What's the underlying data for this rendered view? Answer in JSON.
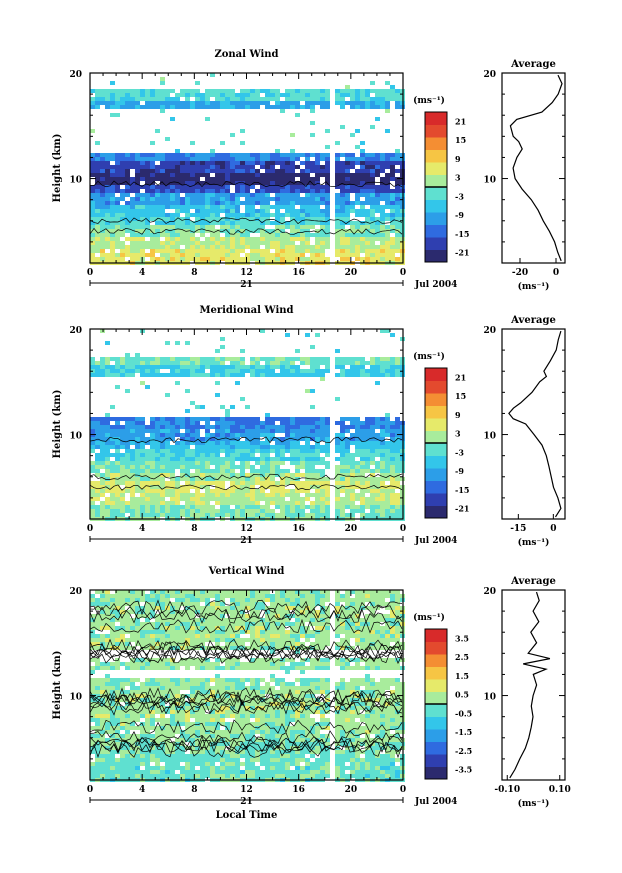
{
  "chart_data": [
    {
      "type": "heatmap",
      "title": "Zonal Wind",
      "xlabel": "",
      "ylabel": "Height (km)",
      "xlim": [
        0,
        24
      ],
      "ylim": [
        2,
        20
      ],
      "x_ticks": [
        "0",
        "4",
        "8",
        "12",
        "16",
        "20",
        "0"
      ],
      "y_ticks": [
        "10",
        "20"
      ],
      "date_labels": [
        "21",
        "Jul 2004"
      ],
      "colorbar": {
        "unit": "(ms⁻¹)",
        "ticks": [
          "21",
          "15",
          "9",
          "3",
          "-3",
          "-9",
          "-15",
          "-21"
        ],
        "range": [
          -24,
          24
        ]
      },
      "field": [
        {
          "z": 2.5,
          "v": 6
        },
        {
          "z": 4,
          "v": 3
        },
        {
          "z": 5,
          "v": 0
        },
        {
          "z": 6,
          "v": -3
        },
        {
          "z": 7,
          "v": -6
        },
        {
          "z": 8,
          "v": -10
        },
        {
          "z": 9,
          "v": -17
        },
        {
          "z": 10,
          "v": -22
        },
        {
          "z": 11,
          "v": -18
        },
        {
          "z": 12,
          "v": -12
        },
        {
          "z": 13,
          "v": null
        },
        {
          "z": 14,
          "v": null
        },
        {
          "z": 15,
          "v": null
        },
        {
          "z": 16,
          "v": null
        },
        {
          "z": 17,
          "v": -9
        },
        {
          "z": 18,
          "v": -3
        },
        {
          "z": 19,
          "v": null
        }
      ],
      "average": {
        "title": "Average",
        "xlabel": "(ms⁻¹)",
        "x_ticks": [
          "-20",
          "0"
        ],
        "xlim": [
          -30,
          5
        ],
        "ylim": [
          2,
          20
        ],
        "y_ticks": [
          "10",
          "20"
        ],
        "profile": [
          {
            "z": 2.2,
            "v": 3
          },
          {
            "z": 3,
            "v": 1
          },
          {
            "z": 4,
            "v": -1
          },
          {
            "z": 5,
            "v": -4
          },
          {
            "z": 6,
            "v": -7
          },
          {
            "z": 7,
            "v": -10
          },
          {
            "z": 8,
            "v": -14
          },
          {
            "z": 9,
            "v": -19
          },
          {
            "z": 10,
            "v": -23
          },
          {
            "z": 11,
            "v": -24
          },
          {
            "z": 12,
            "v": -22
          },
          {
            "z": 12.8,
            "v": -19
          },
          {
            "z": 13.5,
            "v": -21
          },
          {
            "z": 14,
            "v": -24
          },
          {
            "z": 15,
            "v": -25
          },
          {
            "z": 15.6,
            "v": -22
          },
          {
            "z": 16.3,
            "v": -8
          },
          {
            "z": 17.2,
            "v": -2
          },
          {
            "z": 18,
            "v": 1
          },
          {
            "z": 19,
            "v": 3
          },
          {
            "z": 19.8,
            "v": 1
          }
        ]
      }
    },
    {
      "type": "heatmap",
      "title": "Meridional Wind",
      "xlabel": "",
      "ylabel": "Height (km)",
      "xlim": [
        0,
        24
      ],
      "ylim": [
        2,
        20
      ],
      "x_ticks": [
        "0",
        "4",
        "8",
        "12",
        "16",
        "20",
        "0"
      ],
      "y_ticks": [
        "10",
        "20"
      ],
      "date_labels": [
        "21",
        "Jul 2004"
      ],
      "colorbar": {
        "unit": "(ms⁻¹)",
        "ticks": [
          "21",
          "15",
          "9",
          "3",
          "-3",
          "-9",
          "-15",
          "-21"
        ],
        "range": [
          -24,
          24
        ]
      },
      "field": [
        {
          "z": 2.5,
          "v": 0
        },
        {
          "z": 4,
          "v": 3
        },
        {
          "z": 5,
          "v": 5
        },
        {
          "z": 6,
          "v": 2
        },
        {
          "z": 7,
          "v": -1
        },
        {
          "z": 8,
          "v": -4
        },
        {
          "z": 9,
          "v": -7
        },
        {
          "z": 10,
          "v": -10
        },
        {
          "z": 11,
          "v": -12
        },
        {
          "z": 12,
          "v": null
        },
        {
          "z": 13,
          "v": null
        },
        {
          "z": 14,
          "v": null
        },
        {
          "z": 15,
          "v": null
        },
        {
          "z": 16,
          "v": -5
        },
        {
          "z": 17,
          "v": -1
        },
        {
          "z": 18,
          "v": null
        },
        {
          "z": 19,
          "v": null
        }
      ],
      "average": {
        "title": "Average",
        "xlabel": "(ms⁻¹)",
        "x_ticks": [
          "-15",
          "0"
        ],
        "xlim": [
          -22,
          5
        ],
        "ylim": [
          2,
          20
        ],
        "y_ticks": [
          "10",
          "20"
        ],
        "profile": [
          {
            "z": 2.2,
            "v": 1
          },
          {
            "z": 3,
            "v": 3
          },
          {
            "z": 4,
            "v": 2
          },
          {
            "z": 5,
            "v": 0
          },
          {
            "z": 6,
            "v": -1
          },
          {
            "z": 7,
            "v": -2
          },
          {
            "z": 8,
            "v": -3
          },
          {
            "z": 9,
            "v": -5
          },
          {
            "z": 10,
            "v": -8
          },
          {
            "z": 11,
            "v": -12
          },
          {
            "z": 11.5,
            "v": -17
          },
          {
            "z": 12,
            "v": -19
          },
          {
            "z": 12.5,
            "v": -17
          },
          {
            "z": 13,
            "v": -14
          },
          {
            "z": 14,
            "v": -9
          },
          {
            "z": 15,
            "v": -6
          },
          {
            "z": 15.5,
            "v": -3
          },
          {
            "z": 16,
            "v": -4
          },
          {
            "z": 17,
            "v": -1
          },
          {
            "z": 18,
            "v": 1
          },
          {
            "z": 19,
            "v": 2
          },
          {
            "z": 19.8,
            "v": 3
          }
        ]
      }
    },
    {
      "type": "heatmap",
      "title": "Vertical Wind",
      "xlabel": "Local Time",
      "ylabel": "Height (km)",
      "xlim": [
        0,
        24
      ],
      "ylim": [
        2,
        20
      ],
      "x_ticks": [
        "0",
        "4",
        "8",
        "12",
        "16",
        "20",
        "0"
      ],
      "y_ticks": [
        "10",
        "20"
      ],
      "date_labels": [
        "21",
        "Jul 2004"
      ],
      "colorbar": {
        "unit": "(ms⁻¹)",
        "ticks": [
          "3.5",
          "2.5",
          "1.5",
          "0.5",
          "-0.5",
          "-1.5",
          "-2.5",
          "-3.5"
        ],
        "range": [
          -4,
          4
        ]
      },
      "field": [
        {
          "z": 2.5,
          "v": -0.3
        },
        {
          "z": 4,
          "v": -0.2
        },
        {
          "z": 5,
          "v": -0.1
        },
        {
          "z": 6,
          "v": 0.1
        },
        {
          "z": 7,
          "v": 0.2
        },
        {
          "z": 8,
          "v": 0.3
        },
        {
          "z": 9,
          "v": 0.3
        },
        {
          "z": 10,
          "v": 0.3
        },
        {
          "z": 11,
          "v": 0.2
        },
        {
          "z": 12,
          "v": null
        },
        {
          "z": 13,
          "v": 0.2
        },
        {
          "z": 14,
          "v": null
        },
        {
          "z": 15,
          "v": 0.3
        },
        {
          "z": 16,
          "v": 0.3
        },
        {
          "z": 17,
          "v": 0.2
        },
        {
          "z": 18,
          "v": 0.3
        },
        {
          "z": 19,
          "v": 0.2
        }
      ],
      "average": {
        "title": "Average",
        "xlabel": "(ms⁻¹)",
        "x_ticks": [
          "-0.10",
          "0.10"
        ],
        "xlim": [
          -0.12,
          0.12
        ],
        "ylim": [
          2,
          20
        ],
        "y_ticks": [
          "10",
          "20"
        ],
        "profile": [
          {
            "z": 2.2,
            "v": -0.09
          },
          {
            "z": 3,
            "v": -0.07
          },
          {
            "z": 4,
            "v": -0.05
          },
          {
            "z": 5,
            "v": -0.03
          },
          {
            "z": 6,
            "v": -0.02
          },
          {
            "z": 7,
            "v": -0.01
          },
          {
            "z": 8,
            "v": 0.0
          },
          {
            "z": 9,
            "v": -0.01
          },
          {
            "z": 10,
            "v": 0.0
          },
          {
            "z": 11,
            "v": 0.01
          },
          {
            "z": 12,
            "v": 0.0
          },
          {
            "z": 12.5,
            "v": 0.05
          },
          {
            "z": 13,
            "v": -0.04
          },
          {
            "z": 13.5,
            "v": 0.06
          },
          {
            "z": 14,
            "v": -0.02
          },
          {
            "z": 15,
            "v": 0.01
          },
          {
            "z": 16,
            "v": -0.01
          },
          {
            "z": 17,
            "v": 0.02
          },
          {
            "z": 18,
            "v": 0.0
          },
          {
            "z": 19,
            "v": 0.02
          },
          {
            "z": 19.8,
            "v": 0.01
          }
        ]
      }
    }
  ],
  "colors": {
    "scale": [
      "#2b2a6e",
      "#2f3fb0",
      "#2f6be0",
      "#2c9ee8",
      "#33c6ea",
      "#5fe0d0",
      "#a8ec9c",
      "#e6ea6a",
      "#f6c544",
      "#f48e33",
      "#e34a2e",
      "#d82a2a"
    ],
    "missing": "#ffffff",
    "ink": "#000000"
  }
}
